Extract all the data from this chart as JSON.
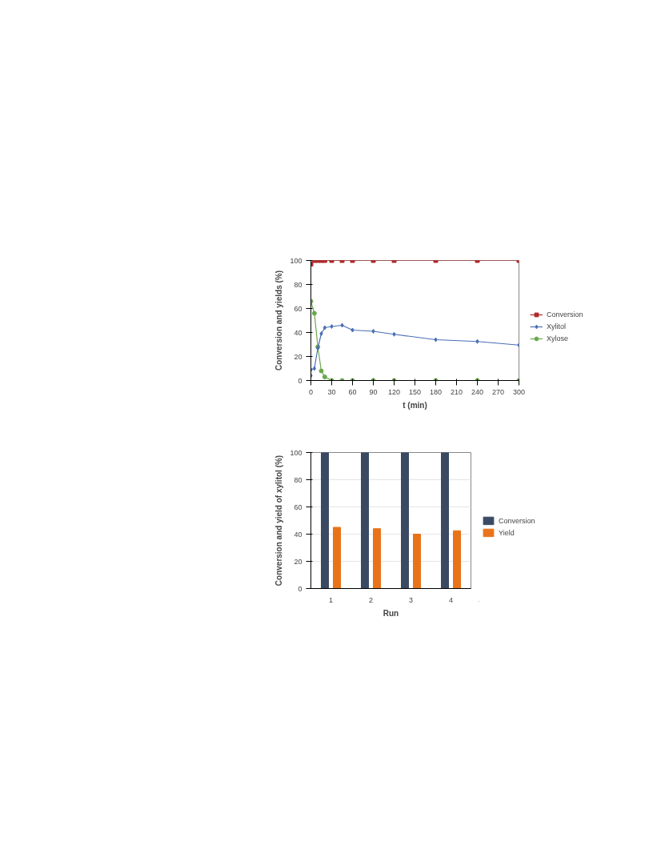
{
  "chart_data": [
    {
      "type": "line",
      "xlabel": "t (min)",
      "ylabel": "Conversion and yields (%)",
      "xlim": [
        0,
        300
      ],
      "xticks": [
        0,
        30,
        60,
        90,
        120,
        150,
        180,
        210,
        240,
        270,
        300
      ],
      "ylim": [
        0,
        100
      ],
      "yticks": [
        0,
        20,
        40,
        60,
        80,
        100
      ],
      "grid": false,
      "legend": "right",
      "series": [
        {
          "name": "Conversion",
          "color": "#b0282a",
          "marker": "square",
          "x": [
            0,
            5,
            10,
            15,
            20,
            30,
            45,
            60,
            90,
            120,
            180,
            240,
            300
          ],
          "values": [
            97,
            100,
            100,
            100,
            100,
            100,
            100,
            100,
            100,
            100,
            100,
            100,
            100
          ]
        },
        {
          "name": "Xylitol",
          "color": "#4a6fb5",
          "marker": "diamond",
          "x": [
            0,
            0,
            5,
            10,
            15,
            20,
            30,
            45,
            60,
            90,
            120,
            180,
            240,
            300
          ],
          "values": [
            4,
            9,
            10,
            27,
            39,
            44,
            45,
            46,
            42,
            41,
            38.5,
            34,
            32.5,
            29.5
          ]
        },
        {
          "name": "Xylose",
          "color": "#6aa84f",
          "marker": "circle",
          "x": [
            0,
            5,
            10,
            15,
            20,
            30,
            45,
            60,
            90,
            120,
            180,
            240,
            300
          ],
          "values": [
            66,
            56,
            28,
            8,
            3,
            0,
            0,
            0,
            0,
            0,
            0,
            0,
            0
          ]
        }
      ]
    },
    {
      "type": "bar",
      "xlabel": "Run",
      "ylabel": "Conversion and yield of xylitol (%)",
      "categories": [
        "1",
        "2",
        "3",
        "4"
      ],
      "ylim": [
        0,
        100
      ],
      "yticks": [
        0,
        20,
        40,
        60,
        80,
        100
      ],
      "grid": "y",
      "legend": "right",
      "series": [
        {
          "name": "Conversion",
          "color": "#3b4a63",
          "values": [
            100,
            100,
            100,
            100
          ]
        },
        {
          "name": "Yield",
          "color": "#e8731a",
          "values": [
            45,
            44,
            40,
            42.5
          ]
        }
      ]
    }
  ]
}
